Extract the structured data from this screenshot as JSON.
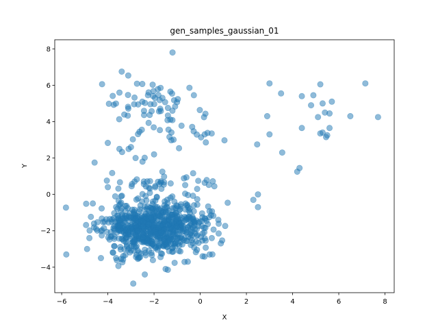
{
  "chart_data": {
    "type": "scatter",
    "title": "gen_samples_gaussian_01",
    "xlabel": "X",
    "ylabel": "Y",
    "xlim": [
      -6.3,
      8.4
    ],
    "ylim": [
      -5.4,
      8.5
    ],
    "xticks": [
      -6,
      -4,
      -2,
      0,
      2,
      4,
      6,
      8
    ],
    "xtick_labels": [
      "−6",
      "−4",
      "−2",
      "0",
      "2",
      "4",
      "6",
      "8"
    ],
    "yticks": [
      -4,
      -2,
      0,
      2,
      4,
      6,
      8
    ],
    "ytick_labels": [
      "−4",
      "−2",
      "0",
      "2",
      "4",
      "6",
      "8"
    ],
    "grid": false,
    "marker_color": "#1f77b4",
    "marker_alpha": 0.5,
    "clusters": [
      {
        "center": [
          -2.0,
          -1.8
        ],
        "std": [
          1.1,
          0.75
        ],
        "count": 760,
        "seed": 11
      },
      {
        "center": [
          -2.2,
          4.9
        ],
        "std": [
          1.1,
          0.8
        ],
        "count": 60,
        "seed": 23
      },
      {
        "center": [
          -1.3,
          3.4
        ],
        "std": [
          1.3,
          0.55
        ],
        "count": 25,
        "seed": 37
      },
      {
        "center": [
          -1.5,
          0.5
        ],
        "std": [
          1.2,
          0.45
        ],
        "count": 40,
        "seed": 41
      }
    ],
    "points": [
      [
        -5.8,
        -3.3
      ],
      [
        -4.9,
        -3.0
      ],
      [
        -4.8,
        -2.4
      ],
      [
        -4.6,
        -1.6
      ],
      [
        -4.3,
        -3.5
      ],
      [
        -4.0,
        0.4
      ],
      [
        -3.5,
        2.5
      ],
      [
        -3.1,
        2.5
      ],
      [
        -3.0,
        2.6
      ],
      [
        -2.8,
        2.0
      ],
      [
        -2.5,
        1.8
      ],
      [
        -2.0,
        2.2
      ],
      [
        -1.2,
        7.8
      ],
      [
        -3.4,
        6.75
      ],
      [
        -2.9,
        -4.9
      ],
      [
        -2.4,
        -4.4
      ],
      [
        -1.5,
        -4.1
      ],
      [
        0.1,
        -3.4
      ],
      [
        -0.3,
        -1.5
      ],
      [
        0.5,
        -2.4
      ],
      [
        2.3,
        -0.3
      ],
      [
        2.5,
        0.0
      ],
      [
        2.5,
        -0.7
      ],
      [
        3.0,
        6.1
      ],
      [
        3.5,
        5.55
      ],
      [
        2.9,
        4.3
      ],
      [
        3.0,
        3.3
      ],
      [
        3.55,
        2.3
      ],
      [
        4.2,
        1.25
      ],
      [
        4.3,
        1.45
      ],
      [
        4.4,
        5.4
      ],
      [
        4.4,
        3.65
      ],
      [
        4.8,
        4.9
      ],
      [
        4.9,
        5.45
      ],
      [
        5.1,
        4.25
      ],
      [
        5.2,
        6.05
      ],
      [
        5.3,
        5.0
      ],
      [
        5.2,
        3.35
      ],
      [
        5.4,
        4.5
      ],
      [
        5.5,
        3.25
      ],
      [
        5.6,
        3.65
      ],
      [
        5.7,
        5.1
      ],
      [
        5.6,
        4.45
      ],
      [
        5.45,
        3.15
      ],
      [
        6.5,
        4.3
      ],
      [
        7.15,
        6.1
      ],
      [
        7.7,
        4.25
      ],
      [
        5.3,
        3.4
      ]
    ]
  }
}
